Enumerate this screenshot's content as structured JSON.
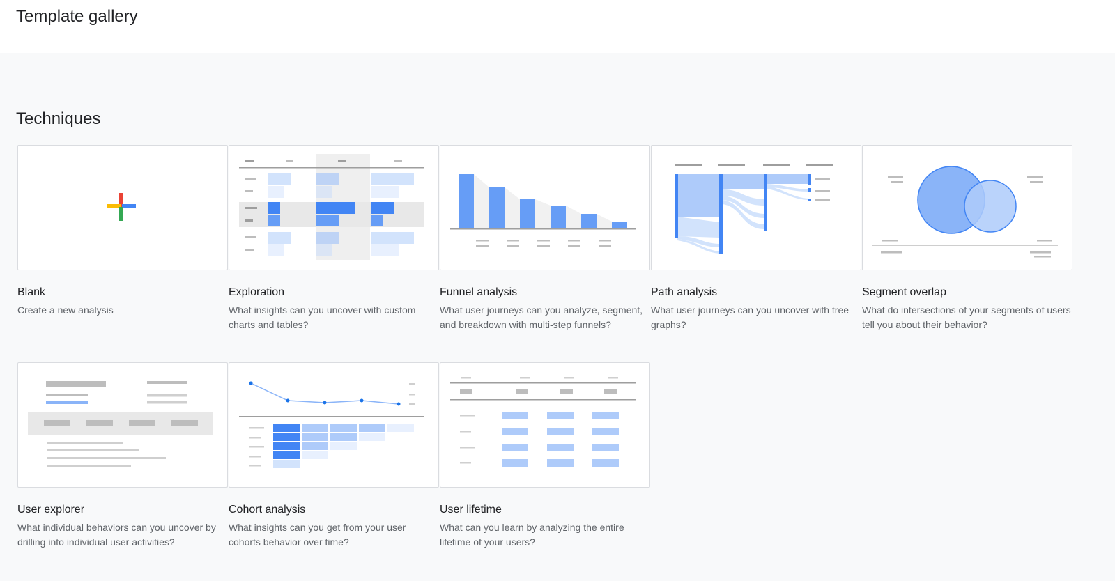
{
  "header": {
    "title": "Template gallery"
  },
  "section": {
    "title": "Techniques"
  },
  "cards": [
    {
      "title": "Blank",
      "description": "Create a new analysis"
    },
    {
      "title": "Exploration",
      "description": "What insights can you uncover with custom charts and tables?"
    },
    {
      "title": "Funnel analysis",
      "description": "What user journeys can you analyze, segment, and breakdown with multi-step funnels?"
    },
    {
      "title": "Path analysis",
      "description": "What user journeys can you uncover with tree graphs?"
    },
    {
      "title": "Segment overlap",
      "description": "What do intersections of your segments of users tell you about their behavior?"
    },
    {
      "title": "User explorer",
      "description": "What individual behaviors can you uncover by drilling into individual user activities?"
    },
    {
      "title": "Cohort analysis",
      "description": "What insights can you get from your user cohorts behavior over time?"
    },
    {
      "title": "User lifetime",
      "description": "What can you learn by analyzing the entire lifetime of your users?"
    }
  ],
  "icons": {
    "blank": "plus-icon",
    "exploration": "table-thumbnail-icon",
    "funnel": "funnel-chart-icon",
    "path": "path-tree-icon",
    "segment": "venn-diagram-icon",
    "user_explorer": "user-list-icon",
    "cohort": "cohort-chart-icon",
    "lifetime": "lifetime-table-icon"
  },
  "colors": {
    "blue": "#4285f4",
    "light_blue": "#aecbfa",
    "pale_blue": "#d2e3fc",
    "red": "#ea4335",
    "yellow": "#fbbc04",
    "green": "#34a853"
  }
}
